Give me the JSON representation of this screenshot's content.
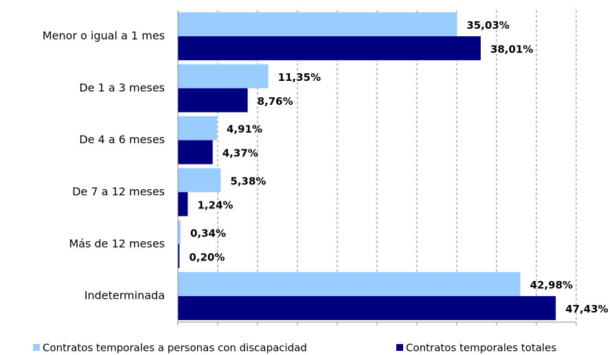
{
  "chart_data": {
    "type": "barh",
    "categories": [
      "Menor o igual a 1 mes",
      "De 1 a 3 meses",
      "De 4 a 6 meses",
      "De 7 a 12 meses",
      "Más de 12 meses",
      "Indeterminada"
    ],
    "series": [
      {
        "name": "Contratos temporales a personas con discapacidad",
        "color": "#99ccff",
        "values": [
          35.03,
          11.35,
          4.91,
          5.38,
          0.34,
          42.98
        ],
        "value_labels": [
          "35,03%",
          "11,35%",
          "4,91%",
          "5,38%",
          "0,34%",
          "42,98%"
        ]
      },
      {
        "name": "Contratos temporales totales",
        "color": "#000080",
        "values": [
          38.01,
          8.76,
          4.37,
          1.24,
          0.2,
          47.43
        ],
        "value_labels": [
          "38,01%",
          "8,76%",
          "4,37%",
          "1,24%",
          "0,20%",
          "47,43%"
        ]
      }
    ],
    "xlim": [
      0,
      50
    ],
    "xticks": [
      0,
      5,
      10,
      15,
      20,
      25,
      30,
      35,
      40,
      45,
      50
    ],
    "grid": true,
    "legend": "bottom"
  }
}
